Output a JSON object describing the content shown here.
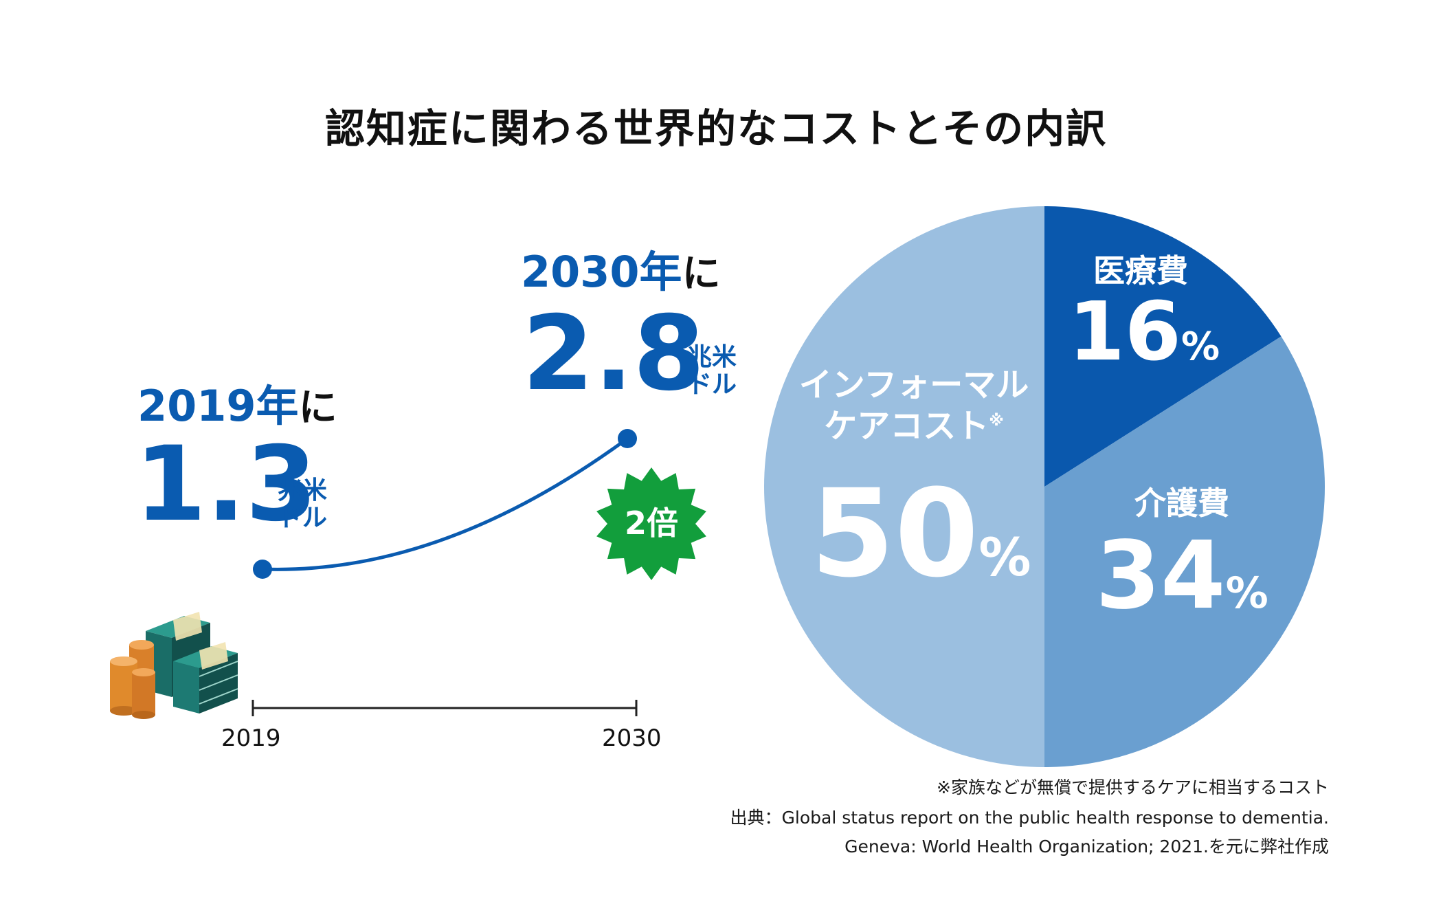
{
  "title": "認知症に関わる世界的なコストとその内訳",
  "growth": {
    "left": {
      "year_label": "2019年",
      "suffix": "に",
      "value": "1.3",
      "unit_line1": "兆米",
      "unit_line2": "ドル"
    },
    "right": {
      "year_label": "2030年",
      "suffix": "に",
      "value": "2.8",
      "unit_line1": "兆米",
      "unit_line2": "ドル"
    },
    "badge": "2倍",
    "axis_years": [
      "2019",
      "2030"
    ]
  },
  "pie": {
    "slices": [
      {
        "name": "医療費",
        "value": 16,
        "pct_label": "16",
        "color": "#0a58ad"
      },
      {
        "name": "介護費",
        "value": 34,
        "pct_label": "34",
        "color": "#6a9fd0"
      },
      {
        "name_line1": "インフォーマル",
        "name_line2": "ケアコスト",
        "mark": "※",
        "value": 50,
        "pct_label": "50",
        "color": "#9bbfe0"
      }
    ],
    "pct_sign": "%"
  },
  "notes": [
    "※家族などが無償で提供するケアに相当するコスト",
    "出典：Global status report on the public health response to dementia.",
    "Geneva: World Health Organization; 2021.を元に弊社作成"
  ],
  "chart_data": [
    {
      "type": "line",
      "x": [
        2019,
        2030
      ],
      "y": [
        1.3,
        2.8
      ],
      "ylabel": "兆米ドル",
      "annotation": "2倍"
    },
    {
      "type": "pie",
      "categories": [
        "医療費",
        "介護費",
        "インフォーマルケアコスト"
      ],
      "values": [
        16,
        34,
        50
      ]
    }
  ],
  "colors": {
    "accent_blue": "#0a5bb0",
    "badge_green": "#129e3c",
    "money_green": "#1f7f78",
    "coin_orange": "#e08a2c"
  },
  "icons": [
    "money-stack-icon",
    "coin-stack-icon"
  ]
}
